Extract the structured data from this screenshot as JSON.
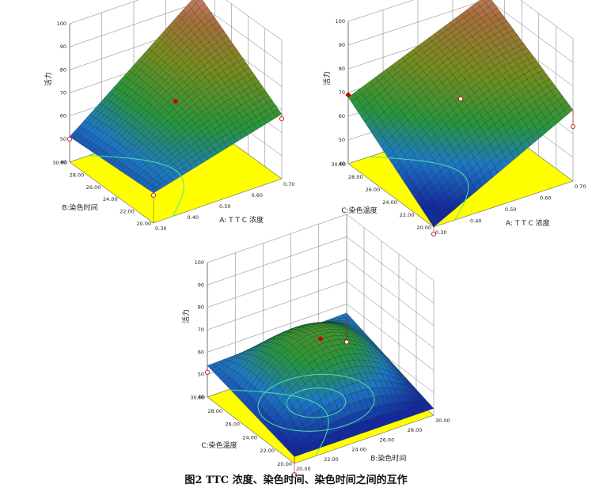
{
  "caption": "图2  TTC 浓度、染色时间、染色时间之间的互作",
  "colors": {
    "floor": "#ffff00",
    "contour": "#4de0a0",
    "grid": "#777777",
    "point": "#cc0000"
  },
  "chart_data": [
    {
      "type": "surface3d",
      "x_axis_label": "A: T T C 浓度",
      "y_axis_label": "B:染色时间",
      "z_axis_label": "活力",
      "x_ticks": [
        "0.30",
        "0.40",
        "0.50",
        "0.60",
        "0.70"
      ],
      "y_ticks": [
        "20.00",
        "22.00",
        "24.00",
        "26.00",
        "28.00",
        "30.00"
      ],
      "z_ticks": [
        "40",
        "50",
        "60",
        "70",
        "80",
        "90",
        "100"
      ],
      "xlim": [
        0.3,
        0.7
      ],
      "ylim": [
        20,
        30
      ],
      "zlim": [
        40,
        100
      ],
      "surface_corners": {
        "x_min_y_min": 53,
        "x_max_y_min": 68,
        "x_min_y_max": 51,
        "x_max_y_max": 94,
        "center": 70
      },
      "design_points": [
        {
          "x": 0.7,
          "y": 30.0,
          "z": 97
        },
        {
          "x": 0.5,
          "y": 25.0,
          "z": 70
        },
        {
          "x": 0.7,
          "y": 20.0,
          "z": 66
        },
        {
          "x": 0.3,
          "y": 30.0,
          "z": 50
        },
        {
          "x": 0.3,
          "y": 20.0,
          "z": 52
        }
      ]
    },
    {
      "type": "surface3d",
      "x_axis_label": "A: T T C 浓度",
      "y_axis_label": "C:染色温度",
      "z_axis_label": "活力",
      "x_ticks": [
        "0.30",
        "0.40",
        "0.50",
        "0.60",
        "0.70"
      ],
      "y_ticks": [
        "20.00",
        "22.00",
        "24.00",
        "26.00",
        "28.00",
        "30.00"
      ],
      "z_ticks": [
        "40",
        "50",
        "60",
        "70",
        "80",
        "90",
        "100"
      ],
      "xlim": [
        0.3,
        0.7
      ],
      "ylim": [
        20,
        30
      ],
      "zlim": [
        40,
        100
      ],
      "surface_corners": {
        "x_min_y_min": 40,
        "x_max_y_min": 70,
        "x_min_y_max": 68,
        "x_max_y_max": 92,
        "center": 72
      },
      "design_points": [
        {
          "x": 0.7,
          "y": 30.0,
          "z": 94
        },
        {
          "x": 0.5,
          "y": 25.0,
          "z": 71
        },
        {
          "x": 0.3,
          "y": 30.0,
          "z": 69
        },
        {
          "x": 0.3,
          "y": 20.0,
          "z": 37
        },
        {
          "x": 0.7,
          "y": 20.0,
          "z": 63
        }
      ]
    },
    {
      "type": "surface3d",
      "x_axis_label": "B:染色时间",
      "y_axis_label": "C:染色温度",
      "z_axis_label": "活力",
      "x_ticks": [
        "20.00",
        "22.00",
        "24.00",
        "26.00",
        "28.00",
        "30.00"
      ],
      "y_ticks": [
        "20.00",
        "22.00",
        "24.00",
        "26.00",
        "28.00",
        "30.00"
      ],
      "z_ticks": [
        "40",
        "50",
        "60",
        "70",
        "80",
        "90",
        "100"
      ],
      "xlim": [
        20,
        30
      ],
      "ylim": [
        20,
        30
      ],
      "zlim": [
        40,
        100
      ],
      "surface_corners": {
        "x_min_y_min": 43,
        "x_max_y_min": 43,
        "x_min_y_max": 54,
        "x_max_y_max": 56,
        "center": 70
      },
      "design_points": [
        {
          "x": 30.0,
          "y": 30.0,
          "z": 43
        },
        {
          "x": 25.0,
          "y": 25.0,
          "z": 70
        },
        {
          "x": 20.0,
          "y": 30.0,
          "z": 51
        },
        {
          "x": 20.0,
          "y": 20.0,
          "z": 35
        }
      ]
    }
  ]
}
